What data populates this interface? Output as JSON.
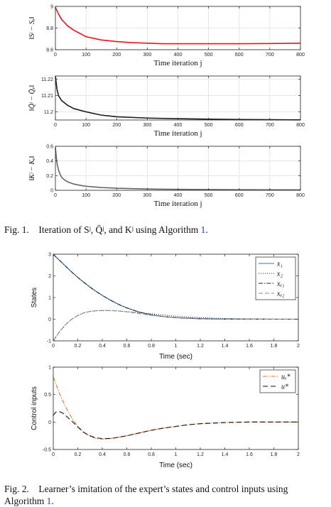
{
  "caption1": {
    "label": "Fig. 1.",
    "text": "Iteration of Sʲ, Q̄ʲ, and Kʲ using Algorithm ",
    "ref": "1",
    "end": "."
  },
  "caption2": {
    "label": "Fig. 2.",
    "text": "Learner’s imitation of the expert’s states and control inputs using Algorithm ",
    "ref": "1",
    "end": "."
  },
  "chart_data": [
    {
      "type": "line",
      "ylabel": "‖Sʲ − Sₑ‖",
      "xlabel": "Time iteration j",
      "xlim": [
        0,
        800
      ],
      "ylim": [
        8.6,
        9
      ],
      "xticks": [
        0,
        100,
        200,
        300,
        400,
        500,
        600,
        700,
        800
      ],
      "yticks": [
        8.6,
        8.8,
        9
      ],
      "ytick_labels": [
        "8.6",
        "8.8",
        "9"
      ],
      "grid": true,
      "series": [
        {
          "color": "#e8151c",
          "x": [
            0,
            10,
            20,
            40,
            60,
            80,
            100,
            150,
            200,
            250,
            300,
            350,
            400,
            500,
            600,
            700,
            800
          ],
          "y": [
            8.99,
            8.93,
            8.88,
            8.82,
            8.78,
            8.75,
            8.72,
            8.69,
            8.675,
            8.665,
            8.66,
            8.655,
            8.655,
            8.655,
            8.655,
            8.657,
            8.66
          ]
        }
      ]
    },
    {
      "type": "line",
      "ylabel": "‖Q̄ʲ − Q̄ₑ‖",
      "xlabel": "Time iteration j",
      "xlim": [
        0,
        800
      ],
      "ylim": [
        11.195,
        11.222
      ],
      "xticks": [
        0,
        100,
        200,
        300,
        400,
        500,
        600,
        700,
        800
      ],
      "yticks": [
        11.2,
        11.21,
        11.22
      ],
      "ytick_labels": [
        "11.2",
        "11.21",
        "11.22"
      ],
      "grid": true,
      "series": [
        {
          "color": "#1a1a1a",
          "x": [
            0,
            5,
            10,
            20,
            40,
            60,
            100,
            150,
            200,
            300,
            400,
            500,
            600,
            700,
            800
          ],
          "y": [
            11.222,
            11.214,
            11.21,
            11.207,
            11.204,
            11.202,
            11.2,
            11.198,
            11.197,
            11.1962,
            11.1958,
            11.1955,
            11.1953,
            11.1952,
            11.1951
          ]
        }
      ]
    },
    {
      "type": "line",
      "ylabel": "‖Kʲ − Kₑ‖",
      "xlabel": "Time iteration j",
      "xlim": [
        0,
        800
      ],
      "ylim": [
        0,
        0.6
      ],
      "xticks": [
        0,
        100,
        200,
        300,
        400,
        500,
        600,
        700,
        800
      ],
      "yticks": [
        0,
        0.2,
        0.4,
        0.6
      ],
      "ytick_labels": [
        "0",
        "0.2",
        "0.4",
        "0.6"
      ],
      "grid": true,
      "series": [
        {
          "color": "#666666",
          "x": [
            0,
            3,
            6,
            10,
            15,
            20,
            30,
            40,
            60,
            80,
            100,
            150,
            200,
            300,
            400,
            500,
            600,
            700,
            800
          ],
          "y": [
            0.58,
            0.45,
            0.35,
            0.28,
            0.22,
            0.18,
            0.14,
            0.115,
            0.085,
            0.068,
            0.055,
            0.038,
            0.028,
            0.018,
            0.013,
            0.01,
            0.008,
            0.007,
            0.006
          ]
        }
      ]
    },
    {
      "type": "line",
      "ylabel": "States",
      "xlabel": "Time (sec)",
      "xlim": [
        0,
        2
      ],
      "ylim": [
        -1,
        3
      ],
      "xticks": [
        0,
        0.2,
        0.4,
        0.6,
        0.8,
        1,
        1.2,
        1.4,
        1.6,
        1.8,
        2
      ],
      "yticks": [
        -1,
        0,
        1,
        2,
        3
      ],
      "ytick_labels": [
        "-1",
        "0",
        "1",
        "2",
        "3"
      ],
      "grid": false,
      "legend": "top-right",
      "series": [
        {
          "name": "x₁",
          "color": "#2b7bb9",
          "dash": "",
          "x": [
            0,
            0.05,
            0.1,
            0.15,
            0.2,
            0.25,
            0.3,
            0.35,
            0.4,
            0.45,
            0.5,
            0.55,
            0.6,
            0.7,
            0.8,
            0.9,
            1.0,
            1.2,
            1.4,
            1.6,
            1.8,
            2.0
          ],
          "y": [
            3,
            2.72,
            2.45,
            2.18,
            1.93,
            1.7,
            1.48,
            1.28,
            1.1,
            0.93,
            0.78,
            0.64,
            0.52,
            0.33,
            0.2,
            0.12,
            0.07,
            0.02,
            0.005,
            0.001,
            0,
            0
          ]
        },
        {
          "name": "x₂",
          "color": "#333333",
          "dash": "1.2,1.8",
          "x": [
            0,
            0.05,
            0.1,
            0.15,
            0.2,
            0.25,
            0.3,
            0.35,
            0.4,
            0.45,
            0.5,
            0.55,
            0.6,
            0.7,
            0.8,
            0.9,
            1.0,
            1.2,
            1.4,
            1.6,
            1.8,
            2.0
          ],
          "y": [
            -1,
            -0.58,
            -0.25,
            0.0,
            0.17,
            0.29,
            0.36,
            0.39,
            0.4,
            0.4,
            0.39,
            0.37,
            0.35,
            0.3,
            0.25,
            0.19,
            0.14,
            0.07,
            0.03,
            0.01,
            0.005,
            0
          ]
        },
        {
          "name": "xₑ₁",
          "color": "#222222",
          "dash": "6,2,1.5,2",
          "x": [
            0,
            0.05,
            0.1,
            0.15,
            0.2,
            0.25,
            0.3,
            0.35,
            0.4,
            0.45,
            0.5,
            0.55,
            0.6,
            0.7,
            0.8,
            0.9,
            1.0,
            1.2,
            1.4,
            1.6,
            1.8,
            2.0
          ],
          "y": [
            3,
            2.72,
            2.45,
            2.18,
            1.93,
            1.7,
            1.48,
            1.28,
            1.1,
            0.93,
            0.78,
            0.64,
            0.52,
            0.33,
            0.2,
            0.12,
            0.07,
            0.02,
            0.005,
            0.001,
            0,
            0
          ]
        },
        {
          "name": "xₑ₂",
          "color": "#8a8a8a",
          "dash": "6,3",
          "x": [
            0,
            0.05,
            0.1,
            0.15,
            0.2,
            0.25,
            0.3,
            0.35,
            0.4,
            0.45,
            0.5,
            0.55,
            0.6,
            0.7,
            0.8,
            0.9,
            1.0,
            1.2,
            1.4,
            1.6,
            1.8,
            2.0
          ],
          "y": [
            -1,
            -0.58,
            -0.25,
            0.0,
            0.17,
            0.29,
            0.36,
            0.39,
            0.4,
            0.4,
            0.39,
            0.37,
            0.34,
            0.26,
            0.18,
            0.12,
            0.08,
            0.03,
            0.01,
            0.003,
            0.001,
            0
          ]
        }
      ]
    },
    {
      "type": "line",
      "ylabel": "Control inputs",
      "xlabel": "Time (sec)",
      "xlim": [
        0,
        2
      ],
      "ylim": [
        -0.5,
        1
      ],
      "xticks": [
        0,
        0.2,
        0.4,
        0.6,
        0.8,
        1,
        1.2,
        1.4,
        1.6,
        1.8,
        2
      ],
      "yticks": [
        -0.5,
        0,
        0.5,
        1
      ],
      "ytick_labels": [
        "-0.5",
        "0",
        "0.5",
        "1"
      ],
      "grid": false,
      "legend": "top-right",
      "series": [
        {
          "name": "uₑ*",
          "color": "#e8732a",
          "dash": "6,2,1.5,2",
          "x": [
            0,
            0.05,
            0.1,
            0.15,
            0.2,
            0.25,
            0.3,
            0.35,
            0.4,
            0.45,
            0.5,
            0.6,
            0.7,
            0.8,
            0.9,
            1.0,
            1.1,
            1.2,
            1.3,
            1.4,
            1.5,
            1.6,
            1.7,
            1.8,
            1.9,
            2.0
          ],
          "y": [
            0.82,
            0.52,
            0.28,
            0.08,
            -0.08,
            -0.19,
            -0.26,
            -0.3,
            -0.31,
            -0.305,
            -0.29,
            -0.25,
            -0.2,
            -0.15,
            -0.11,
            -0.08,
            -0.05,
            -0.03,
            -0.02,
            -0.01,
            -0.005,
            0,
            0,
            0,
            0,
            0
          ]
        },
        {
          "name": "u*",
          "color": "#111111",
          "dash": "7,4",
          "x": [
            0,
            0.02,
            0.05,
            0.08,
            0.1,
            0.15,
            0.2,
            0.25,
            0.3,
            0.35,
            0.4,
            0.45,
            0.5,
            0.6,
            0.7,
            0.8,
            0.9,
            1.0,
            1.1,
            1.2,
            1.3,
            1.4,
            1.5,
            1.6,
            1.7,
            1.8,
            1.9,
            2.0
          ],
          "y": [
            0.12,
            0.18,
            0.19,
            0.16,
            0.12,
            0.02,
            -0.09,
            -0.19,
            -0.25,
            -0.29,
            -0.3,
            -0.3,
            -0.29,
            -0.25,
            -0.2,
            -0.15,
            -0.11,
            -0.08,
            -0.05,
            -0.03,
            -0.02,
            -0.01,
            -0.005,
            0,
            0,
            0,
            0,
            0
          ]
        }
      ]
    }
  ]
}
